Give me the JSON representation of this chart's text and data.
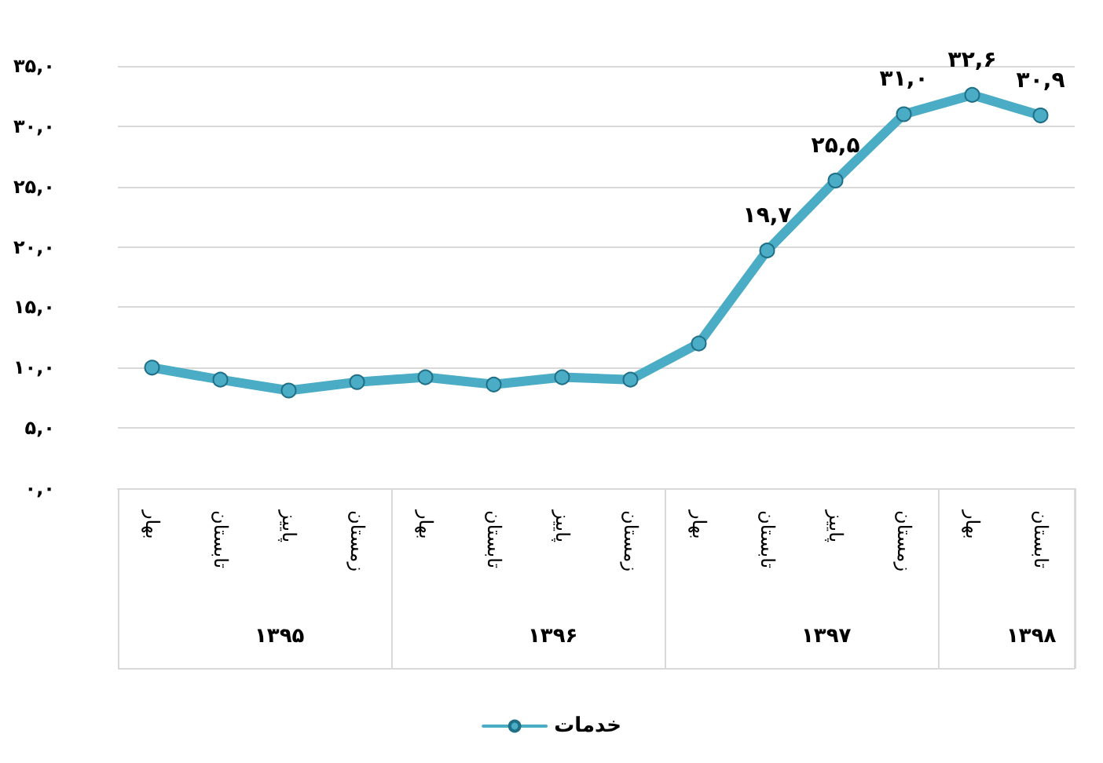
{
  "chart_data": {
    "type": "line",
    "categories": [
      "بهار",
      "تابستان",
      "پاییز",
      "زمستان",
      "بهار",
      "تابستان",
      "پاییز",
      "زمستان",
      "بهار",
      "تابستان",
      "پاییز",
      "زمستان",
      "بهار",
      "تابستان"
    ],
    "series": [
      {
        "name": "خدمات",
        "color": "#4bacc6",
        "values": [
          10.0,
          9.0,
          8.1,
          8.8,
          9.2,
          8.6,
          9.2,
          9.0,
          12.0,
          19.7,
          25.5,
          31.0,
          32.6,
          30.9
        ],
        "value_labels": [
          null,
          null,
          null,
          null,
          null,
          null,
          null,
          null,
          null,
          "۱۹,۷",
          "۲۵,۵",
          "۳۱,۰",
          "۳۲,۶",
          "۳۰,۹"
        ]
      }
    ],
    "annotations": [
      "۱۳۹۵",
      "۱۳۹۶",
      "۱۳۹۷",
      "۱۳۹۸"
    ],
    "ylim": [
      0,
      35
    ],
    "yticks": [
      {
        "value": 0,
        "label": "۰,۰"
      },
      {
        "value": 5,
        "label": "۵,۰"
      },
      {
        "value": 10,
        "label": "۱۰,۰"
      },
      {
        "value": 15,
        "label": "۱۵,۰"
      },
      {
        "value": 20,
        "label": "۲۰,۰"
      },
      {
        "value": 25,
        "label": "۲۵,۰"
      },
      {
        "value": 30,
        "label": "۳۰,۰"
      },
      {
        "value": 35,
        "label": "۳۵,۰"
      }
    ],
    "grid": "y",
    "legend": "bottom",
    "marker": "circle",
    "line_style": "solid"
  }
}
